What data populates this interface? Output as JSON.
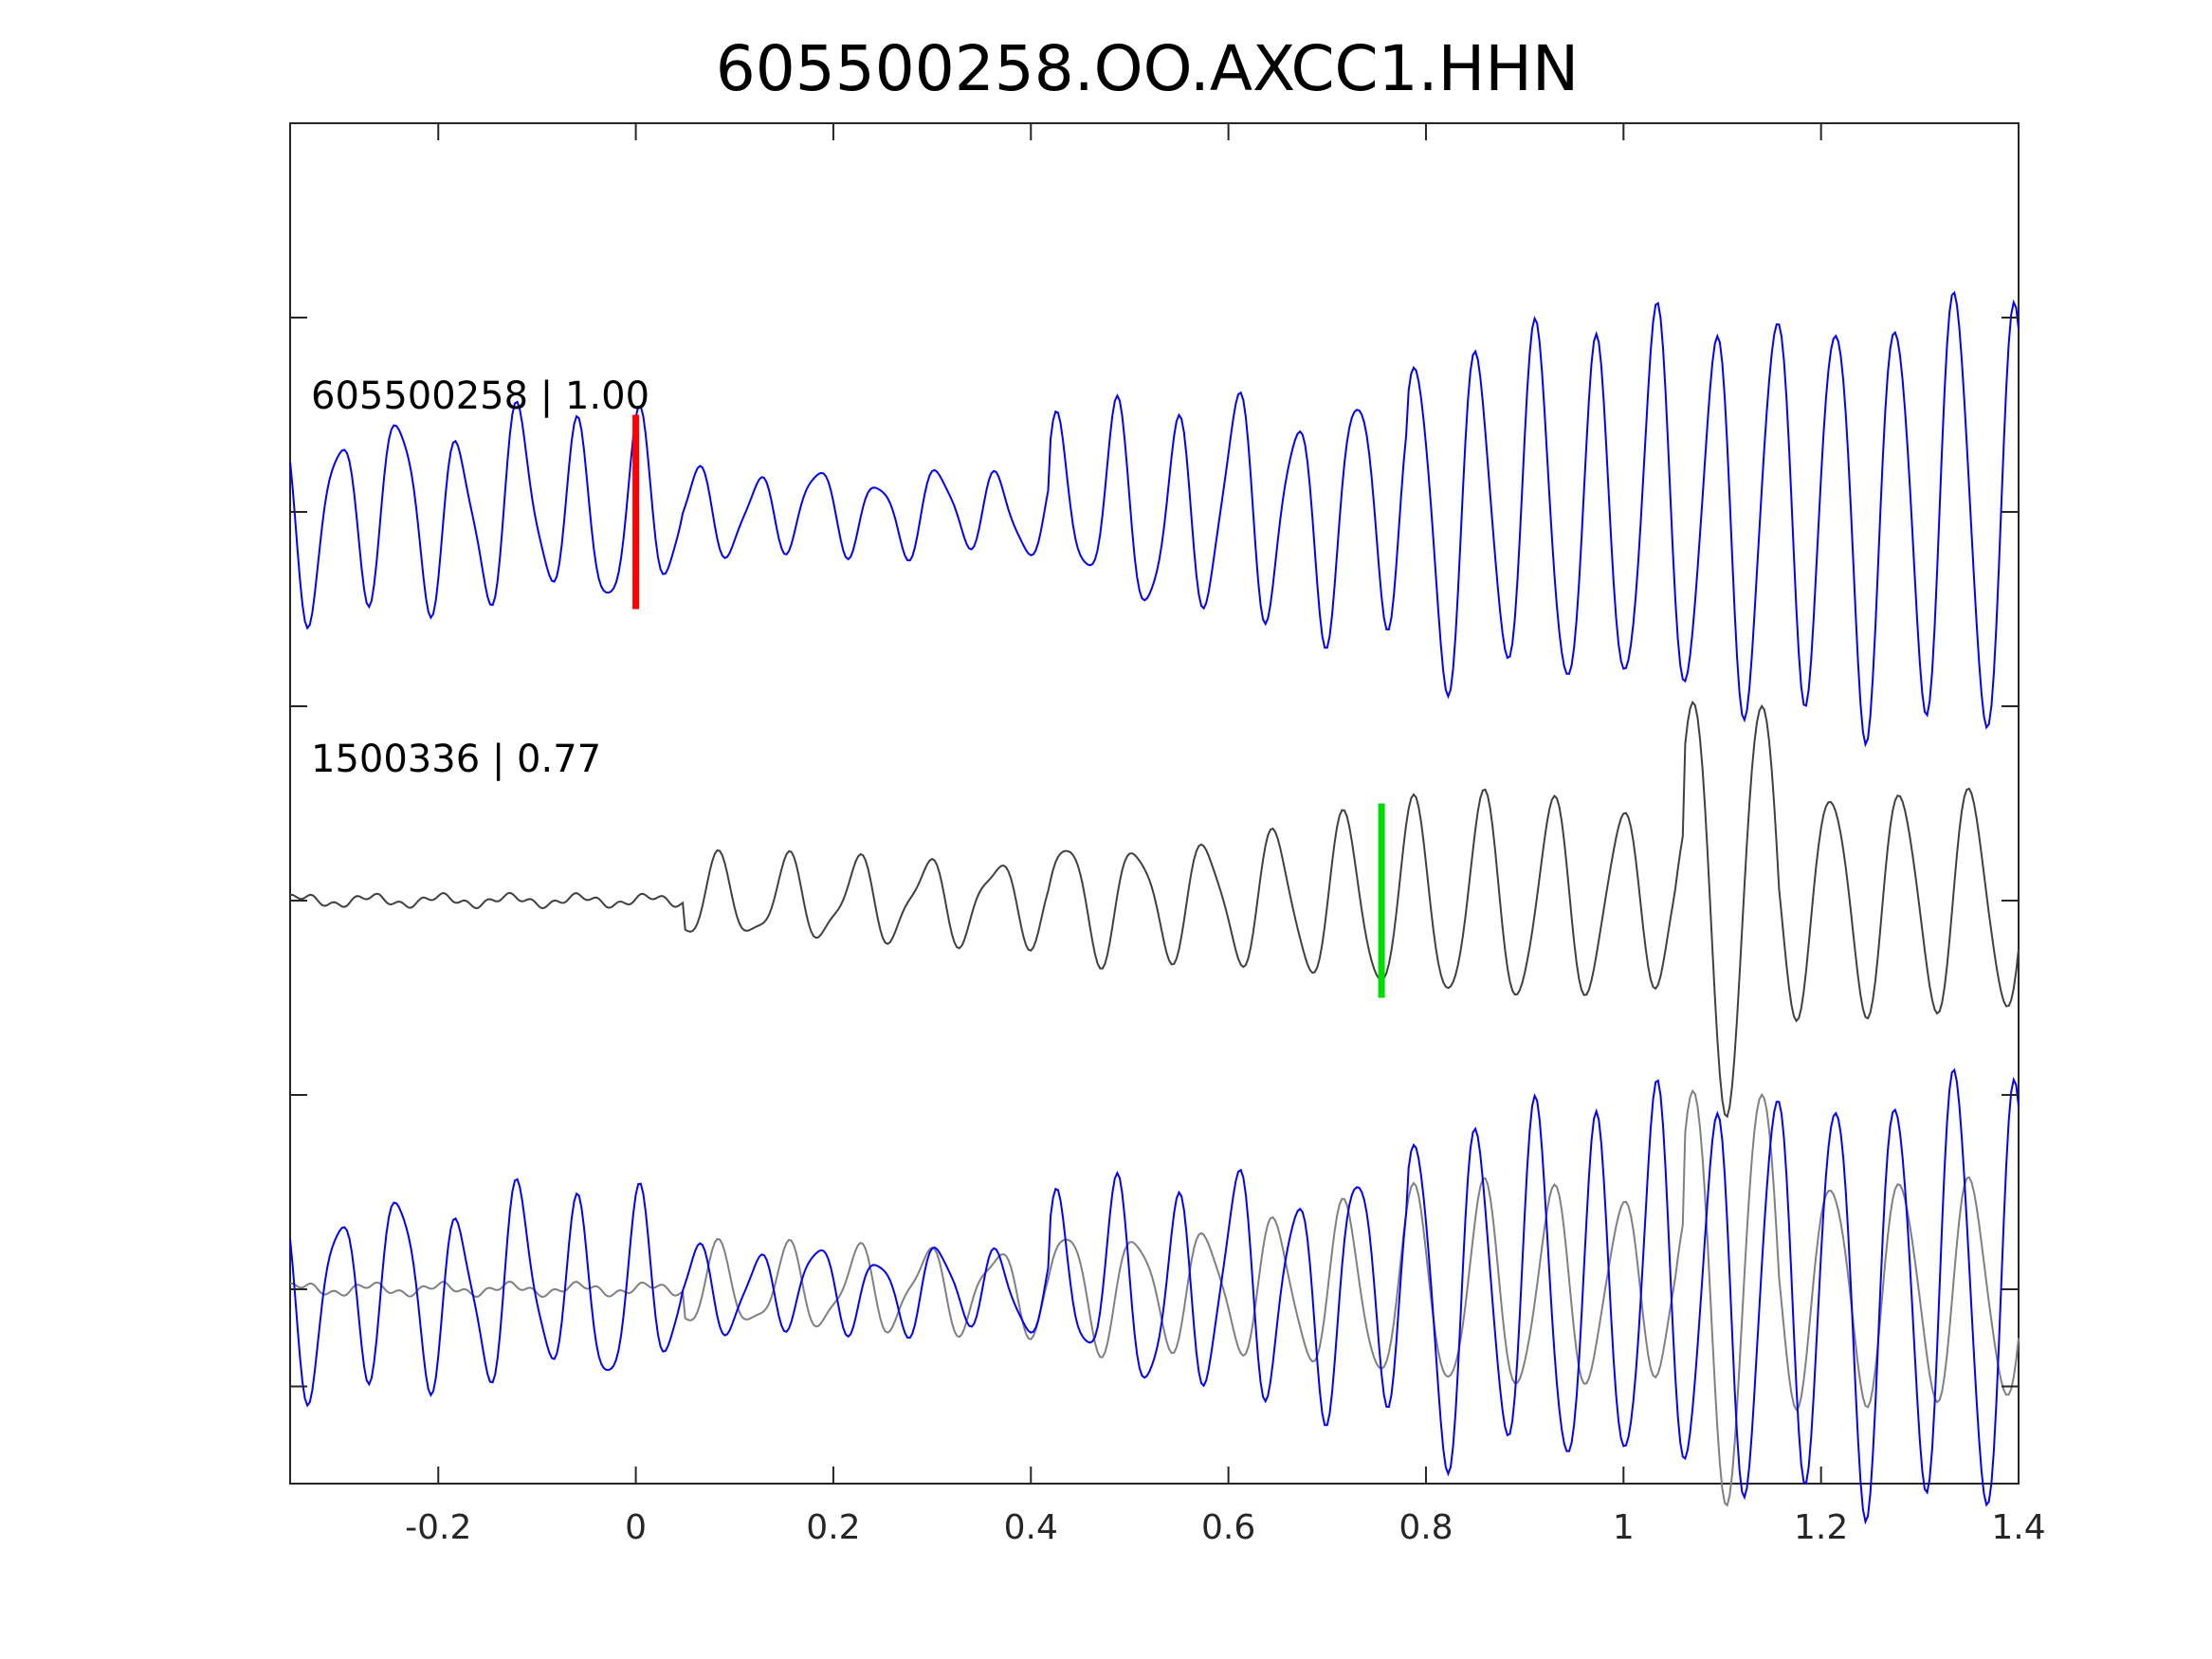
{
  "chart_data": {
    "type": "line",
    "title": "605500258.OO.AXCC1.HHN",
    "xlabel": "",
    "ylabel": "",
    "xlim": [
      -0.35,
      1.4
    ],
    "ylim": [
      -0.5,
      3.0
    ],
    "x_ticks": [
      -0.2,
      0,
      0.2,
      0.4,
      0.6,
      0.8,
      1.0,
      1.2,
      1.4
    ],
    "x_tick_labels": [
      "-0.2",
      "0",
      "0.2",
      "0.4",
      "0.6",
      "0.8",
      "1",
      "1.2",
      "1.4"
    ],
    "y_ticks": [
      -0.25,
      0.0,
      0.5,
      1.0,
      1.5,
      2.0,
      2.5
    ],
    "grid": false,
    "traces": [
      {
        "label": "605500258 | 1.00",
        "offset": 2.0,
        "color": "#0000ff",
        "pick_x": 0.0,
        "pick_color": "#ff0000"
      },
      {
        "label": "1500336 | 0.77",
        "offset": 1.0,
        "color": "#404040",
        "pick_x": 0.755,
        "pick_color": "#00dd00"
      },
      {
        "label": "",
        "offset": 0.0,
        "color": "#0000ff",
        "overlay_color": "#808080"
      }
    ]
  }
}
